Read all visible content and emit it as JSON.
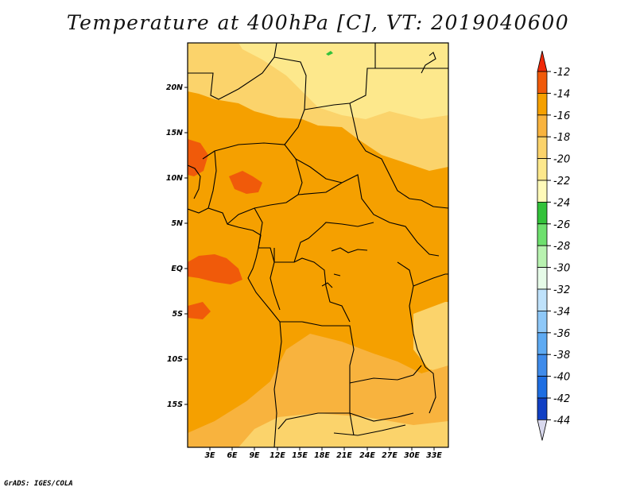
{
  "title": "Temperature at 400hPa [C], VT: 2019040600",
  "credit": "GrADS: IGES/COLA",
  "map": {
    "lat_labels": [
      "20N",
      "15N",
      "10N",
      "5N",
      "EQ",
      "5S",
      "10S",
      "15S"
    ],
    "lon_labels": [
      "3E",
      "6E",
      "9E",
      "12E",
      "15E",
      "18E",
      "21E",
      "24E",
      "27E",
      "30E",
      "33E"
    ],
    "field_colors": {
      "very_warm": "#f05a0a",
      "warm": "#f5a000",
      "mid": "#f8b33e",
      "cool": "#fbd36b",
      "coolest": "#fde88c",
      "green": "#33c23a"
    }
  },
  "colorbar": {
    "labels": [
      "-12",
      "-14",
      "-16",
      "-18",
      "-20",
      "-22",
      "-24",
      "-26",
      "-28",
      "-30",
      "-32",
      "-34",
      "-36",
      "-38",
      "-40",
      "-42",
      "-44"
    ],
    "colors": [
      "#f02808",
      "#f05a0a",
      "#f5a000",
      "#f8b33e",
      "#fbd36b",
      "#fde88c",
      "#fffab9",
      "#33c23a",
      "#6ee06e",
      "#b8f2b0",
      "#e6fbe8",
      "#bfe2fb",
      "#8ec8f8",
      "#5eaaf2",
      "#3f8bea",
      "#1e6ee2",
      "#1140c4",
      "#0c1a80",
      "#d9d9ee"
    ]
  }
}
